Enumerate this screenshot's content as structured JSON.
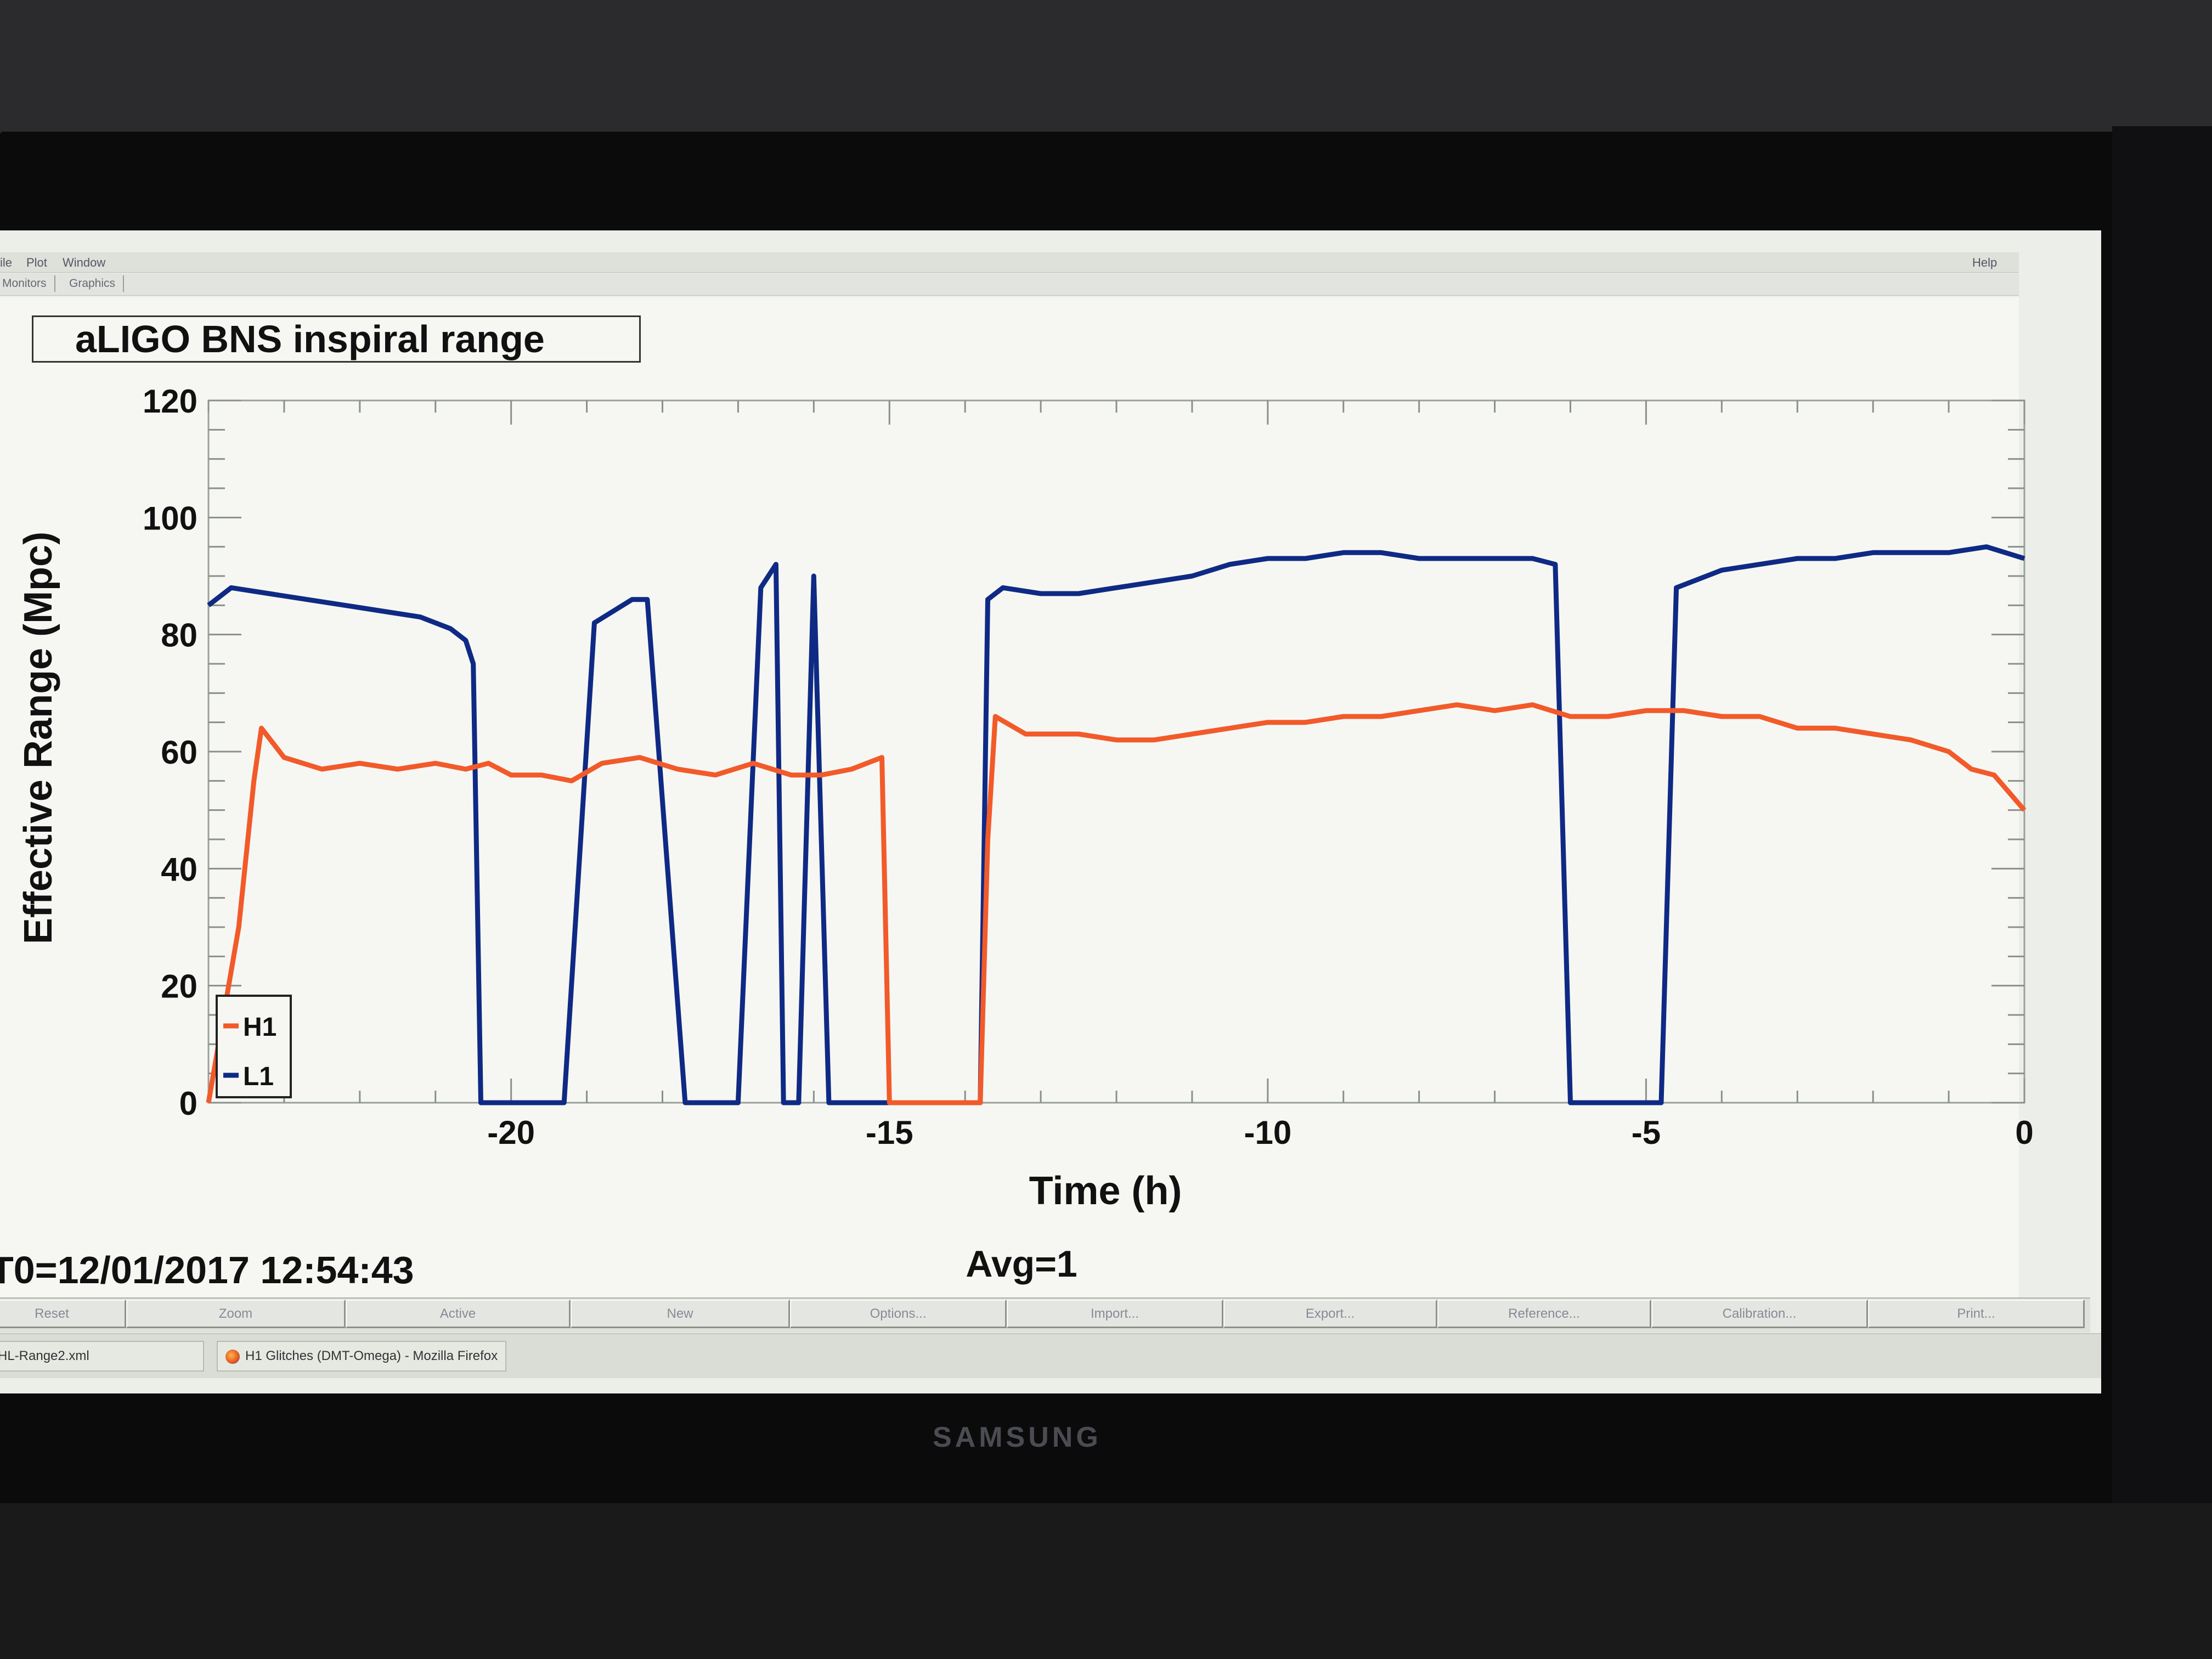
{
  "menu": {
    "items": [
      "ile",
      "Plot",
      "Window"
    ],
    "help": "Help"
  },
  "tabs": [
    "Monitors",
    "Graphics"
  ],
  "plot": {
    "title": "aLIGO BNS inspiral range",
    "t0_label": "T0=12/01/2017 12:54:43",
    "avg_label": "Avg=1"
  },
  "buttons": [
    "Reset",
    "Zoom",
    "Active",
    "New",
    "Options...",
    "Import...",
    "Export...",
    "Reference...",
    "Calibration...",
    "Print..."
  ],
  "taskbar": {
    "items": [
      "HL-Range2.xml",
      "H1 Glitches (DMT-Omega) - Mozilla Firefox"
    ]
  },
  "monitor_brand": "SAMSUNG",
  "chart_data": {
    "type": "line",
    "title": "aLIGO BNS inspiral range",
    "xlabel": "Time (h)",
    "ylabel": "Effective Range (Mpc)",
    "xlim": [
      -24,
      0
    ],
    "ylim": [
      0,
      120
    ],
    "x_ticks": [
      -20,
      -15,
      -10,
      -5,
      0
    ],
    "y_ticks": [
      0,
      20,
      40,
      60,
      80,
      100,
      120
    ],
    "grid": false,
    "legend": "bottom-left",
    "colors": {
      "H1": "#f25a2a",
      "L1": "#0f2a84"
    },
    "series": [
      {
        "name": "H1",
        "x": [
          -24.0,
          -23.6,
          -23.4,
          -23.3,
          -23.0,
          -22.5,
          -22.0,
          -21.5,
          -21.0,
          -20.6,
          -20.3,
          -20.0,
          -19.6,
          -19.2,
          -18.8,
          -18.3,
          -17.8,
          -17.3,
          -16.8,
          -16.3,
          -15.9,
          -15.5,
          -15.1,
          -15.0,
          -14.9,
          -13.8,
          -13.7,
          -13.6,
          -13.2,
          -12.5,
          -12.0,
          -11.5,
          -11.0,
          -10.5,
          -10.0,
          -9.5,
          -9.0,
          -8.5,
          -8.0,
          -7.5,
          -7.0,
          -6.5,
          -6.0,
          -5.5,
          -5.0,
          -4.5,
          -4.0,
          -3.5,
          -3.0,
          -2.5,
          -2.0,
          -1.5,
          -1.0,
          -0.7,
          -0.4,
          -0.2,
          0.0
        ],
        "y": [
          0,
          30,
          55,
          64,
          59,
          57,
          58,
          57,
          58,
          57,
          58,
          56,
          56,
          55,
          58,
          59,
          57,
          56,
          58,
          56,
          56,
          57,
          59,
          0,
          0,
          0,
          45,
          66,
          63,
          63,
          62,
          62,
          63,
          64,
          65,
          65,
          66,
          66,
          67,
          68,
          67,
          68,
          66,
          66,
          67,
          67,
          66,
          66,
          64,
          64,
          63,
          62,
          60,
          57,
          56,
          53,
          50
        ]
      },
      {
        "name": "L1",
        "x": [
          -24.0,
          -23.7,
          -23.2,
          -22.7,
          -22.2,
          -21.7,
          -21.2,
          -20.8,
          -20.6,
          -20.5,
          -20.4,
          -19.8,
          -19.6,
          -19.3,
          -18.9,
          -18.4,
          -18.2,
          -17.7,
          -17.5,
          -17.3,
          -17.0,
          -16.7,
          -16.5,
          -16.4,
          -16.2,
          -16.0,
          -15.8,
          -15.5,
          -15.1,
          -14.8,
          -13.8,
          -13.7,
          -13.5,
          -13.0,
          -12.5,
          -12.0,
          -11.5,
          -11.0,
          -10.5,
          -10.0,
          -9.5,
          -9.0,
          -8.5,
          -8.0,
          -7.5,
          -7.0,
          -6.5,
          -6.2,
          -6.0,
          -5.8,
          -5.0,
          -4.8,
          -4.6,
          -4.0,
          -3.5,
          -3.0,
          -2.5,
          -2.0,
          -1.5,
          -1.0,
          -0.5,
          0.0
        ],
        "y": [
          85,
          88,
          87,
          86,
          85,
          84,
          83,
          81,
          79,
          75,
          0,
          0,
          0,
          0,
          82,
          86,
          86,
          0,
          0,
          0,
          0,
          88,
          92,
          0,
          0,
          90,
          0,
          0,
          0,
          0,
          0,
          86,
          88,
          87,
          87,
          88,
          89,
          90,
          92,
          93,
          93,
          94,
          94,
          93,
          93,
          93,
          93,
          92,
          0,
          0,
          0,
          0,
          88,
          91,
          92,
          93,
          93,
          94,
          94,
          94,
          95,
          93
        ]
      }
    ]
  }
}
